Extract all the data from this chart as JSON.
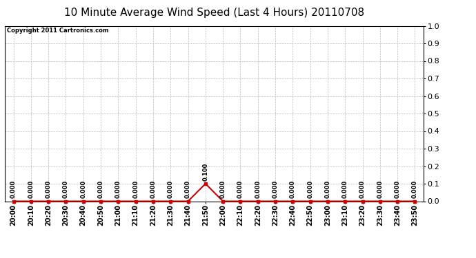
{
  "title": "10 Minute Average Wind Speed (Last 4 Hours) 20110708",
  "copyright": "Copyright 2011 Cartronics.com",
  "x_labels": [
    "20:00",
    "20:10",
    "20:20",
    "20:30",
    "20:40",
    "20:50",
    "21:00",
    "21:10",
    "21:20",
    "21:30",
    "21:40",
    "21:50",
    "22:00",
    "22:10",
    "22:20",
    "22:30",
    "22:40",
    "22:50",
    "23:00",
    "23:10",
    "23:20",
    "23:30",
    "23:40",
    "23:50"
  ],
  "y_values": [
    0.0,
    0.0,
    0.0,
    0.0,
    0.0,
    0.0,
    0.0,
    0.0,
    0.0,
    0.0,
    0.0,
    0.1,
    0.0,
    0.0,
    0.0,
    0.0,
    0.0,
    0.0,
    0.0,
    0.0,
    0.0,
    0.0,
    0.0,
    0.0
  ],
  "point_labels": [
    "0.000",
    "0.000",
    "0.000",
    "0.000",
    "0.000",
    "0.000",
    "0.000",
    "0.000",
    "0.000",
    "0.000",
    "0.000",
    "0.100",
    "0.000",
    "0.000",
    "0.000",
    "0.000",
    "0.000",
    "0.000",
    "0.000",
    "0.000",
    "0.000",
    "0.000",
    "0.000",
    "0.000"
  ],
  "ylim": [
    0.0,
    1.0
  ],
  "yticks": [
    0.0,
    0.1,
    0.2,
    0.3,
    0.4,
    0.5,
    0.6,
    0.7,
    0.8,
    0.9,
    1.0
  ],
  "line_color": "#cc0000",
  "marker_color": "#cc0000",
  "grid_color": "#bbbbbb",
  "bg_color": "#ffffff",
  "title_fontsize": 11,
  "tick_fontsize": 7,
  "copyright_fontsize": 6,
  "point_label_fontsize": 6
}
